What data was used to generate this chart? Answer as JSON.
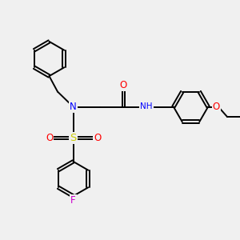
{
  "bg_color": "#f0f0f0",
  "atom_colors": {
    "C": "#000000",
    "N": "#0000ff",
    "O": "#ff0000",
    "S": "#cccc00",
    "F": "#cc00cc",
    "H": "#aaaaaa"
  },
  "bond_color": "#000000",
  "bond_width": 1.4,
  "dbo": 0.06,
  "figsize": [
    3.0,
    3.0
  ],
  "dpi": 100,
  "xlim": [
    0,
    10
  ],
  "ylim": [
    0,
    10
  ]
}
